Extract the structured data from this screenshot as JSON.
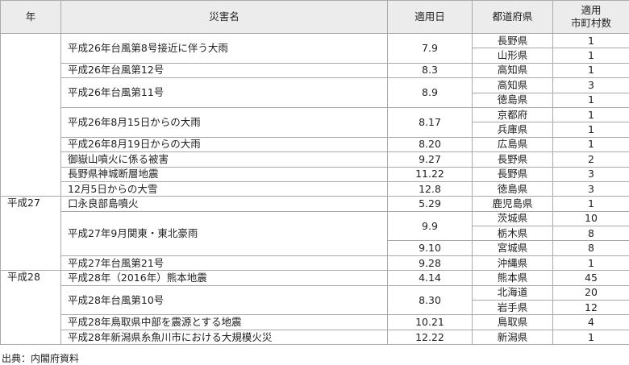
{
  "table": {
    "header": [
      "年",
      "災害名",
      "適用日",
      "都道府県",
      [
        "適用",
        "市町村数"
      ]
    ],
    "groups": [
      {
        "disasters": [
          {
            "name": "平成26年台風第8号接近に伴う大雨",
            "entries": [
              {
                "date": "7.9",
                "prefs": [
                  {
                    "pref": "長野県",
                    "count": "1"
                  },
                  {
                    "pref": "山形県",
                    "count": "1"
                  }
                ]
              }
            ]
          },
          {
            "name": "平成26年台風第12号",
            "entries": [
              {
                "date": "8.3",
                "prefs": [
                  {
                    "pref": "高知県",
                    "count": "1"
                  }
                ]
              }
            ]
          },
          {
            "name": "平成26年台風第11号",
            "entries": [
              {
                "date": "8.9",
                "prefs": [
                  {
                    "pref": "高知県",
                    "count": "3"
                  },
                  {
                    "pref": "徳島県",
                    "count": "1"
                  }
                ]
              }
            ]
          },
          {
            "name": "平成26年8月15日からの大雨",
            "entries": [
              {
                "date": "8.17",
                "prefs": [
                  {
                    "pref": "京都府",
                    "count": "1"
                  },
                  {
                    "pref": "兵庫県",
                    "count": "1"
                  }
                ]
              }
            ]
          },
          {
            "name": "平成26年8月19日からの大雨",
            "entries": [
              {
                "date": "8.20",
                "prefs": [
                  {
                    "pref": "広島県",
                    "count": "1"
                  }
                ]
              }
            ]
          },
          {
            "name": "御嶽山噴火に係る被害",
            "entries": [
              {
                "date": "9.27",
                "prefs": [
                  {
                    "pref": "長野県",
                    "count": "2"
                  }
                ]
              }
            ]
          },
          {
            "name": "長野県神城断層地震",
            "entries": [
              {
                "date": "11.22",
                "prefs": [
                  {
                    "pref": "長野県",
                    "count": "3"
                  }
                ]
              }
            ]
          },
          {
            "name": "12月5日からの大雪",
            "entries": [
              {
                "date": "12.8",
                "prefs": [
                  {
                    "pref": "徳島県",
                    "count": "3"
                  }
                ]
              }
            ]
          }
        ]
      },
      {
        "year": "平成27",
        "disasters": [
          {
            "name": "口永良部島噴火",
            "entries": [
              {
                "date": "5.29",
                "prefs": [
                  {
                    "pref": "鹿児島県",
                    "count": "1"
                  }
                ]
              }
            ]
          },
          {
            "name": "平成27年9月関東・東北豪雨",
            "entries": [
              {
                "date": "9.9",
                "prefs": [
                  {
                    "pref": "茨城県",
                    "count": "10"
                  },
                  {
                    "pref": "栃木県",
                    "count": "8"
                  }
                ]
              },
              {
                "date": "9.10",
                "prefs": [
                  {
                    "pref": "宮城県",
                    "count": "8"
                  }
                ]
              }
            ]
          },
          {
            "name": "平成27年台風第21号",
            "entries": [
              {
                "date": "9.28",
                "prefs": [
                  {
                    "pref": "沖縄県",
                    "count": "1"
                  }
                ]
              }
            ]
          }
        ]
      },
      {
        "year": "平成28",
        "disasters": [
          {
            "name": "平成28年（2016年）熊本地震",
            "entries": [
              {
                "date": "4.14",
                "prefs": [
                  {
                    "pref": "熊本県",
                    "count": "45"
                  }
                ]
              }
            ]
          },
          {
            "name": "平成28年台風第10号",
            "entries": [
              {
                "date": "8.30",
                "prefs": [
                  {
                    "pref": "北海道",
                    "count": "20"
                  },
                  {
                    "pref": "岩手県",
                    "count": "12"
                  }
                ]
              }
            ]
          },
          {
            "name": "平成28年鳥取県中部を震源とする地震",
            "entries": [
              {
                "date": "10.21",
                "prefs": [
                  {
                    "pref": "鳥取県",
                    "count": "4"
                  }
                ]
              }
            ]
          },
          {
            "name": "平成28年新潟県糸魚川市における大規模火災",
            "entries": [
              {
                "date": "12.22",
                "prefs": [
                  {
                    "pref": "新潟県",
                    "count": "1"
                  }
                ]
              }
            ]
          }
        ]
      }
    ]
  },
  "footer": "出典：内閣府資料"
}
